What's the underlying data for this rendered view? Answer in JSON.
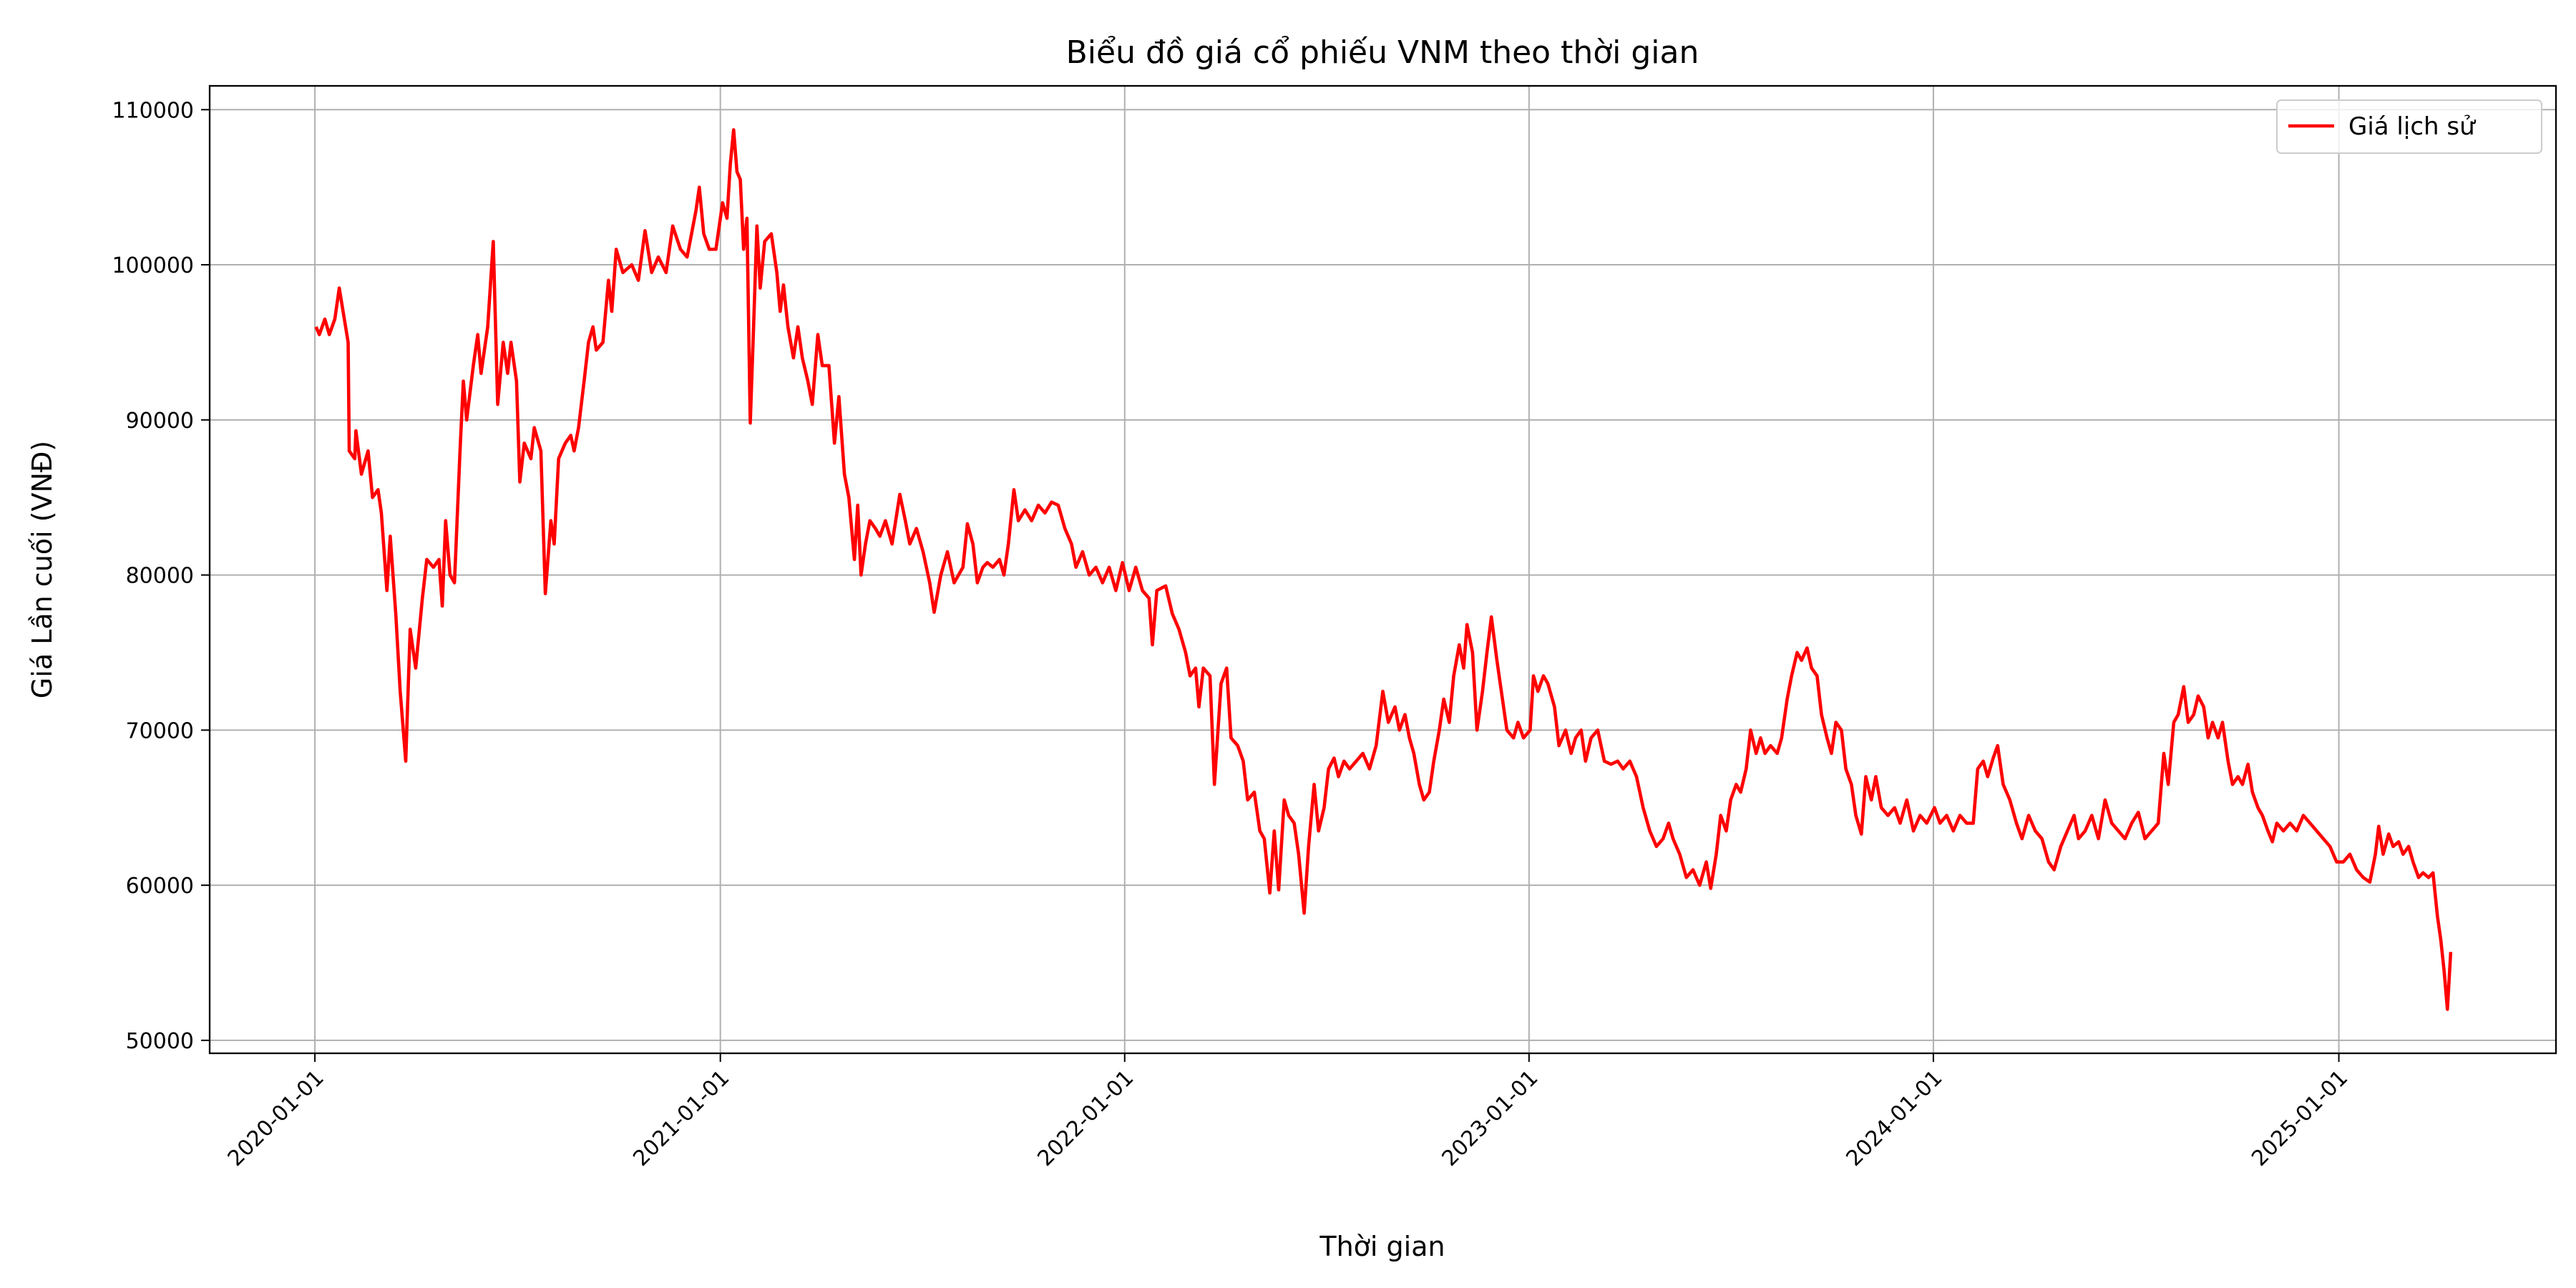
{
  "chart_data": {
    "type": "line",
    "title": "Biểu đồ giá cổ phiếu VNM theo thời gian",
    "xlabel": "Thời gian",
    "ylabel": "Giá Lần cuối (VNĐ)",
    "x": [
      "2020-01-02",
      "2020-01-05",
      "2020-01-10",
      "2020-01-14",
      "2020-01-19",
      "2020-01-23",
      "2020-01-31",
      "2020-02-01",
      "2020-02-06",
      "2020-02-07",
      "2020-02-12",
      "2020-02-18",
      "2020-02-22",
      "2020-02-27",
      "2020-03-01",
      "2020-03-06",
      "2020-03-09",
      "2020-03-14",
      "2020-03-18",
      "2020-03-23",
      "2020-03-27",
      "2020-04-01",
      "2020-04-07",
      "2020-04-11",
      "2020-04-17",
      "2020-04-22",
      "2020-04-25",
      "2020-04-28",
      "2020-05-02",
      "2020-05-06",
      "2020-05-11",
      "2020-05-14",
      "2020-05-17",
      "2020-05-23",
      "2020-05-27",
      "2020-05-30",
      "2020-06-05",
      "2020-06-10",
      "2020-06-14",
      "2020-06-19",
      "2020-06-23",
      "2020-06-26",
      "2020-07-01",
      "2020-07-04",
      "2020-07-08",
      "2020-07-14",
      "2020-07-17",
      "2020-07-23",
      "2020-07-27",
      "2020-08-01",
      "2020-08-04",
      "2020-08-08",
      "2020-08-14",
      "2020-08-19",
      "2020-08-22",
      "2020-08-26",
      "2020-08-31",
      "2020-09-04",
      "2020-09-08",
      "2020-09-11",
      "2020-09-17",
      "2020-09-22",
      "2020-09-25",
      "2020-09-29",
      "2020-10-05",
      "2020-10-13",
      "2020-10-19",
      "2020-10-25",
      "2020-10-31",
      "2020-11-06",
      "2020-11-13",
      "2020-11-19",
      "2020-11-26",
      "2020-12-02",
      "2020-12-10",
      "2020-12-13",
      "2020-12-17",
      "2020-12-22",
      "2020-12-28",
      "2021-01-03",
      "2021-01-07",
      "2021-01-10",
      "2021-01-13",
      "2021-01-16",
      "2021-01-19",
      "2021-01-22",
      "2021-01-25",
      "2021-01-28",
      "2021-01-31",
      "2021-02-03",
      "2021-02-06",
      "2021-02-10",
      "2021-02-16",
      "2021-02-21",
      "2021-02-24",
      "2021-02-27",
      "2021-03-03",
      "2021-03-08",
      "2021-03-12",
      "2021-03-16",
      "2021-03-21",
      "2021-03-25",
      "2021-03-30",
      "2021-04-03",
      "2021-04-09",
      "2021-04-14",
      "2021-04-18",
      "2021-04-23",
      "2021-04-27",
      "2021-05-02",
      "2021-05-05",
      "2021-05-08",
      "2021-05-12",
      "2021-05-16",
      "2021-05-21",
      "2021-05-25",
      "2021-05-30",
      "2021-06-05",
      "2021-06-12",
      "2021-06-17",
      "2021-06-21",
      "2021-06-27",
      "2021-07-03",
      "2021-07-09",
      "2021-07-13",
      "2021-07-19",
      "2021-07-25",
      "2021-07-31",
      "2021-08-08",
      "2021-08-12",
      "2021-08-17",
      "2021-08-21",
      "2021-08-26",
      "2021-08-30",
      "2021-09-04",
      "2021-09-10",
      "2021-09-14",
      "2021-09-18",
      "2021-09-23",
      "2021-09-27",
      "2021-10-03",
      "2021-10-09",
      "2021-10-15",
      "2021-10-21",
      "2021-10-27",
      "2021-11-02",
      "2021-11-08",
      "2021-11-14",
      "2021-11-18",
      "2021-11-24",
      "2021-11-30",
      "2021-12-06",
      "2021-12-12",
      "2021-12-18",
      "2021-12-24",
      "2021-12-30",
      "2022-01-05",
      "2022-01-11",
      "2022-01-17",
      "2022-01-23",
      "2022-01-26",
      "2022-01-30",
      "2022-02-07",
      "2022-02-13",
      "2022-02-19",
      "2022-02-25",
      "2022-03-01",
      "2022-03-06",
      "2022-03-09",
      "2022-03-13",
      "2022-03-19",
      "2022-03-23",
      "2022-03-29",
      "2022-04-03",
      "2022-04-07",
      "2022-04-13",
      "2022-04-18",
      "2022-04-22",
      "2022-04-28",
      "2022-05-03",
      "2022-05-07",
      "2022-05-12",
      "2022-05-16",
      "2022-05-20",
      "2022-05-25",
      "2022-05-29",
      "2022-06-03",
      "2022-06-07",
      "2022-06-12",
      "2022-06-16",
      "2022-06-21",
      "2022-06-25",
      "2022-06-30",
      "2022-07-04",
      "2022-07-09",
      "2022-07-13",
      "2022-07-18",
      "2022-07-23",
      "2022-07-29",
      "2022-08-04",
      "2022-08-10",
      "2022-08-16",
      "2022-08-22",
      "2022-08-27",
      "2022-09-02",
      "2022-09-06",
      "2022-09-11",
      "2022-09-15",
      "2022-09-19",
      "2022-09-24",
      "2022-09-28",
      "2022-10-03",
      "2022-10-07",
      "2022-10-12",
      "2022-10-16",
      "2022-10-21",
      "2022-10-25",
      "2022-10-30",
      "2022-11-03",
      "2022-11-06",
      "2022-11-11",
      "2022-11-15",
      "2022-11-20",
      "2022-11-24",
      "2022-11-28",
      "2022-12-03",
      "2022-12-07",
      "2022-12-12",
      "2022-12-18",
      "2022-12-22",
      "2022-12-27",
      "2023-01-02",
      "2023-01-05",
      "2023-01-09",
      "2023-01-14",
      "2023-01-18",
      "2023-01-24",
      "2023-01-28",
      "2023-02-03",
      "2023-02-08",
      "2023-02-12",
      "2023-02-17",
      "2023-02-21",
      "2023-02-26",
      "2023-03-04",
      "2023-03-10",
      "2023-03-16",
      "2023-03-22",
      "2023-03-27",
      "2023-04-02",
      "2023-04-08",
      "2023-04-14",
      "2023-04-20",
      "2023-04-26",
      "2023-05-02",
      "2023-05-07",
      "2023-05-11",
      "2023-05-17",
      "2023-05-23",
      "2023-05-29",
      "2023-06-04",
      "2023-06-10",
      "2023-06-14",
      "2023-06-19",
      "2023-06-23",
      "2023-06-28",
      "2023-07-02",
      "2023-07-07",
      "2023-07-11",
      "2023-07-16",
      "2023-07-20",
      "2023-07-25",
      "2023-07-29",
      "2023-08-02",
      "2023-08-07",
      "2023-08-13",
      "2023-08-17",
      "2023-08-22",
      "2023-08-26",
      "2023-08-31",
      "2023-09-04",
      "2023-09-09",
      "2023-09-13",
      "2023-09-18",
      "2023-09-22",
      "2023-09-27",
      "2023-10-01",
      "2023-10-05",
      "2023-10-10",
      "2023-10-14",
      "2023-10-19",
      "2023-10-23",
      "2023-10-28",
      "2023-11-01",
      "2023-11-06",
      "2023-11-10",
      "2023-11-15",
      "2023-11-21",
      "2023-11-27",
      "2023-12-02",
      "2023-12-08",
      "2023-12-14",
      "2023-12-20",
      "2023-12-26",
      "2024-01-02",
      "2024-01-07",
      "2024-01-13",
      "2024-01-19",
      "2024-01-25",
      "2024-01-31",
      "2024-02-06",
      "2024-02-10",
      "2024-02-15",
      "2024-02-19",
      "2024-02-24",
      "2024-02-28",
      "2024-03-04",
      "2024-03-10",
      "2024-03-16",
      "2024-03-21",
      "2024-03-27",
      "2024-04-02",
      "2024-04-08",
      "2024-04-14",
      "2024-04-19",
      "2024-04-25",
      "2024-05-01",
      "2024-05-07",
      "2024-05-11",
      "2024-05-17",
      "2024-05-23",
      "2024-05-29",
      "2024-06-04",
      "2024-06-10",
      "2024-06-16",
      "2024-06-22",
      "2024-06-28",
      "2024-07-04",
      "2024-07-10",
      "2024-07-16",
      "2024-07-22",
      "2024-07-27",
      "2024-07-31",
      "2024-08-05",
      "2024-08-09",
      "2024-08-14",
      "2024-08-18",
      "2024-08-23",
      "2024-08-27",
      "2024-09-01",
      "2024-09-05",
      "2024-09-09",
      "2024-09-14",
      "2024-09-18",
      "2024-09-23",
      "2024-09-27",
      "2024-10-02",
      "2024-10-06",
      "2024-10-11",
      "2024-10-15",
      "2024-10-20",
      "2024-10-24",
      "2024-10-29",
      "2024-11-02",
      "2024-11-06",
      "2024-11-12",
      "2024-11-18",
      "2024-11-24",
      "2024-11-30",
      "2024-12-06",
      "2024-12-12",
      "2024-12-18",
      "2024-12-24",
      "2024-12-30",
      "2025-01-05",
      "2025-01-11",
      "2025-01-17",
      "2025-01-23",
      "2025-01-29",
      "2025-02-03",
      "2025-02-06",
      "2025-02-10",
      "2025-02-15",
      "2025-02-19",
      "2025-02-24",
      "2025-02-28",
      "2025-03-05",
      "2025-03-09",
      "2025-03-14",
      "2025-03-18",
      "2025-03-23",
      "2025-03-27",
      "2025-03-31",
      "2025-04-03",
      "2025-04-06",
      "2025-04-09",
      "2025-04-12"
    ],
    "series": [
      {
        "name": "Giá lịch sử",
        "color": "#ff0000",
        "values": [
          96000,
          95500,
          96500,
          95500,
          96500,
          98500,
          95000,
          88000,
          87500,
          89300,
          86500,
          88000,
          85000,
          85500,
          84000,
          79000,
          82500,
          77500,
          72500,
          68000,
          76500,
          74000,
          78500,
          81000,
          80500,
          81000,
          78000,
          83500,
          80000,
          79500,
          88000,
          92500,
          90000,
          93500,
          95500,
          93000,
          96000,
          101500,
          91000,
          95000,
          93000,
          95000,
          92500,
          86000,
          88500,
          87500,
          89500,
          88000,
          78800,
          83500,
          82000,
          87500,
          88500,
          89000,
          88000,
          89500,
          92500,
          95000,
          96000,
          94500,
          95000,
          99000,
          97000,
          101000,
          99500,
          100000,
          99000,
          102200,
          99500,
          100500,
          99500,
          102500,
          101000,
          100500,
          103500,
          105000,
          102000,
          101000,
          101000,
          104000,
          103000,
          106500,
          108700,
          106000,
          105500,
          101000,
          103000,
          89800,
          96000,
          102500,
          98500,
          101500,
          102000,
          99500,
          97000,
          98700,
          96000,
          94000,
          96000,
          94000,
          92500,
          91000,
          95500,
          93500,
          93500,
          88500,
          91500,
          86500,
          85000,
          81000,
          84500,
          80000,
          82000,
          83500,
          83000,
          82500,
          83500,
          82000,
          85200,
          83500,
          82000,
          83000,
          81500,
          79500,
          77600,
          80000,
          81500,
          79500,
          80500,
          83300,
          82000,
          79500,
          80500,
          80800,
          80500,
          81000,
          80000,
          82000,
          85500,
          83500,
          84200,
          83500,
          84500,
          84000,
          84700,
          84500,
          83000,
          82000,
          80500,
          81500,
          80000,
          80500,
          79500,
          80500,
          79000,
          80800,
          79000,
          80500,
          79000,
          78500,
          75500,
          79000,
          79300,
          77500,
          76500,
          75000,
          73500,
          74000,
          71500,
          74000,
          73500,
          66500,
          73000,
          74000,
          69500,
          69000,
          68000,
          65500,
          66000,
          63500,
          63000,
          59500,
          63500,
          59700,
          65500,
          64500,
          64000,
          62000,
          58200,
          62500,
          66500,
          63500,
          65000,
          67500,
          68200,
          67000,
          68000,
          67500,
          68000,
          68500,
          67500,
          69000,
          72500,
          70500,
          71500,
          70000,
          71000,
          69500,
          68500,
          66500,
          65500,
          66000,
          68000,
          70000,
          72000,
          70500,
          73500,
          75500,
          74000,
          76800,
          75000,
          70000,
          72500,
          75000,
          77300,
          74500,
          72500,
          70000,
          69500,
          70500,
          69500,
          70000,
          73500,
          72500,
          73500,
          73000,
          71500,
          69000,
          70000,
          68500,
          69500,
          70000,
          68000,
          69500,
          70000,
          68000,
          67800,
          68000,
          67500,
          68000,
          67000,
          65000,
          63500,
          62500,
          63000,
          64000,
          63000,
          62000,
          60500,
          61000,
          60000,
          61500,
          59800,
          62000,
          64500,
          63500,
          65500,
          66500,
          66000,
          67500,
          70000,
          68500,
          69500,
          68500,
          69000,
          68500,
          69500,
          72000,
          73500,
          75000,
          74500,
          75300,
          74000,
          73500,
          71000,
          69500,
          68500,
          70500,
          70000,
          67500,
          66500,
          64500,
          63300,
          67000,
          65500,
          67000,
          65000,
          64500,
          65000,
          64000,
          65500,
          63500,
          64500,
          64000,
          65000,
          64000,
          64500,
          63500,
          64500,
          64000,
          64000,
          67500,
          68000,
          67000,
          68200,
          69000,
          66500,
          65500,
          64000,
          63000,
          64500,
          63500,
          63000,
          61500,
          61000,
          62500,
          63500,
          64500,
          63000,
          63500,
          64500,
          63000,
          65500,
          64000,
          63500,
          63000,
          64000,
          64700,
          63000,
          63500,
          64000,
          68500,
          66500,
          70500,
          71000,
          72800,
          70500,
          71000,
          72200,
          71500,
          69500,
          70500,
          69500,
          70500,
          68000,
          66500,
          67000,
          66500,
          67800,
          66000,
          65000,
          64500,
          63500,
          62800,
          64000,
          63500,
          64000,
          63500,
          64500,
          64000,
          63500,
          63000,
          62500,
          61500,
          61500,
          62000,
          61000,
          60500,
          60200,
          62000,
          63800,
          62000,
          63300,
          62500,
          62800,
          62000,
          62500,
          61500,
          60500,
          60800,
          60500,
          60800,
          58000,
          56500,
          54500,
          52000,
          55700
        ]
      }
    ],
    "xlim": [
      "2019-09-28",
      "2025-07-16"
    ],
    "xticks": [
      "2020-01-01",
      "2021-01-01",
      "2022-01-01",
      "2023-01-01",
      "2024-01-01",
      "2025-01-01"
    ],
    "ylim": [
      49165,
      111535
    ],
    "yticks": [
      50000,
      60000,
      70000,
      80000,
      90000,
      100000,
      110000
    ],
    "grid": true,
    "legend": "upper right"
  }
}
